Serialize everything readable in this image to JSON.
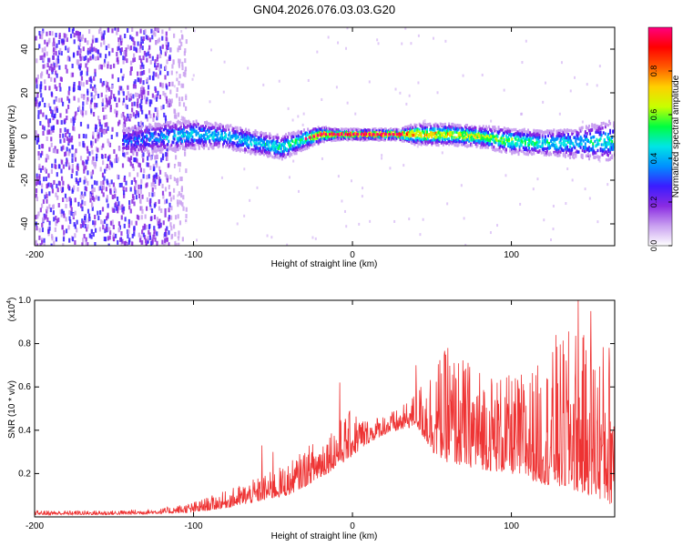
{
  "figure_title": "GN04.2026.076.03.03.G20",
  "chart_data": [
    {
      "type": "heatmap",
      "name": "spectrogram",
      "xlabel": "Height of straight line (km)",
      "ylabel": "Frequency (Hz)",
      "xlim": [
        -200,
        165
      ],
      "ylim": [
        -50,
        50
      ],
      "xticks": [
        -200,
        -100,
        0,
        100
      ],
      "xtick_labels": [
        "-200",
        "-100",
        "0",
        "100"
      ],
      "yticks": [
        -40,
        -20,
        0,
        20,
        40
      ],
      "ytick_labels": [
        "-40",
        "-20",
        "0",
        "20",
        "40"
      ],
      "colorbar": {
        "label": "Normalized spectral amplitude",
        "range": [
          0.0,
          1.0
        ],
        "ticks": [
          0.0,
          0.2,
          0.4,
          0.6,
          0.8
        ],
        "tick_labels": [
          "0.0",
          "0.2",
          "0.4",
          "0.6",
          "0.8"
        ],
        "colormap": [
          "#ffffff",
          "#c9a0f0",
          "#8a2be2",
          "#3b1cff",
          "#0090ff",
          "#00e5e5",
          "#00ff40",
          "#c8ff00",
          "#ffd000",
          "#ff5a00",
          "#ff0000",
          "#ff0080"
        ]
      },
      "band_center": {
        "x": [
          -140,
          -120,
          -100,
          -80,
          -60,
          -45,
          -30,
          -20,
          -10,
          0,
          10,
          20,
          28,
          40,
          60,
          80,
          100,
          120,
          140,
          160
        ],
        "y": [
          -2,
          0,
          1,
          0,
          -3,
          -5,
          -1,
          1,
          1,
          1,
          1,
          1,
          1,
          1,
          1,
          0,
          -2,
          -3,
          -3,
          -2
        ]
      },
      "band_halfwidth_hz": [
        6,
        6,
        6,
        5,
        5,
        5,
        4,
        3,
        2,
        2,
        2,
        2,
        2,
        4,
        4,
        4,
        5,
        5,
        6,
        8
      ],
      "band_peak_amplitude": [
        0.35,
        0.45,
        0.5,
        0.5,
        0.5,
        0.55,
        0.65,
        0.9,
        0.95,
        0.98,
        0.98,
        0.98,
        0.98,
        0.85,
        0.8,
        0.75,
        0.65,
        0.55,
        0.5,
        0.55
      ],
      "noise_region_x": [
        -200,
        -115
      ]
    },
    {
      "type": "line",
      "name": "snr",
      "xlabel": "Height of straight line (km)",
      "ylabel": "SNR (10 * v/v)",
      "y_multiplier": "(x10",
      "y_multiplier_exp": "4",
      "y_multiplier_close": ")",
      "xlim": [
        -200,
        165
      ],
      "ylim": [
        0,
        1.0
      ],
      "xticks": [
        -200,
        -100,
        0,
        100
      ],
      "xtick_labels": [
        "-200",
        "-100",
        "0",
        "100"
      ],
      "yticks": [
        0.2,
        0.4,
        0.6,
        0.8,
        1.0
      ],
      "ytick_labels": [
        "0.2",
        "0.4",
        "0.6",
        "0.8",
        "1.0"
      ],
      "color": "#ee3333",
      "envelope": {
        "x": [
          -200,
          -150,
          -120,
          -100,
          -80,
          -60,
          -40,
          -20,
          0,
          10,
          20,
          30,
          40,
          50,
          60,
          80,
          100,
          120,
          140,
          150,
          165
        ],
        "base": [
          0.01,
          0.01,
          0.015,
          0.02,
          0.04,
          0.07,
          0.1,
          0.18,
          0.28,
          0.34,
          0.38,
          0.4,
          0.42,
          0.3,
          0.25,
          0.22,
          0.2,
          0.15,
          0.12,
          0.1,
          0.05
        ],
        "top": [
          0.03,
          0.03,
          0.04,
          0.07,
          0.12,
          0.18,
          0.25,
          0.38,
          0.5,
          0.45,
          0.48,
          0.5,
          0.58,
          0.72,
          0.78,
          0.7,
          0.65,
          0.72,
          0.9,
          0.8,
          0.85
        ]
      },
      "spikes": [
        {
          "x": -57,
          "y": 0.33
        },
        {
          "x": -50,
          "y": 0.3
        },
        {
          "x": -8,
          "y": 0.62
        },
        {
          "x": 40,
          "y": 0.7
        },
        {
          "x": 60,
          "y": 0.78
        },
        {
          "x": 128,
          "y": 0.84
        },
        {
          "x": 142,
          "y": 1.0
        },
        {
          "x": 150,
          "y": 0.95
        }
      ]
    }
  ]
}
